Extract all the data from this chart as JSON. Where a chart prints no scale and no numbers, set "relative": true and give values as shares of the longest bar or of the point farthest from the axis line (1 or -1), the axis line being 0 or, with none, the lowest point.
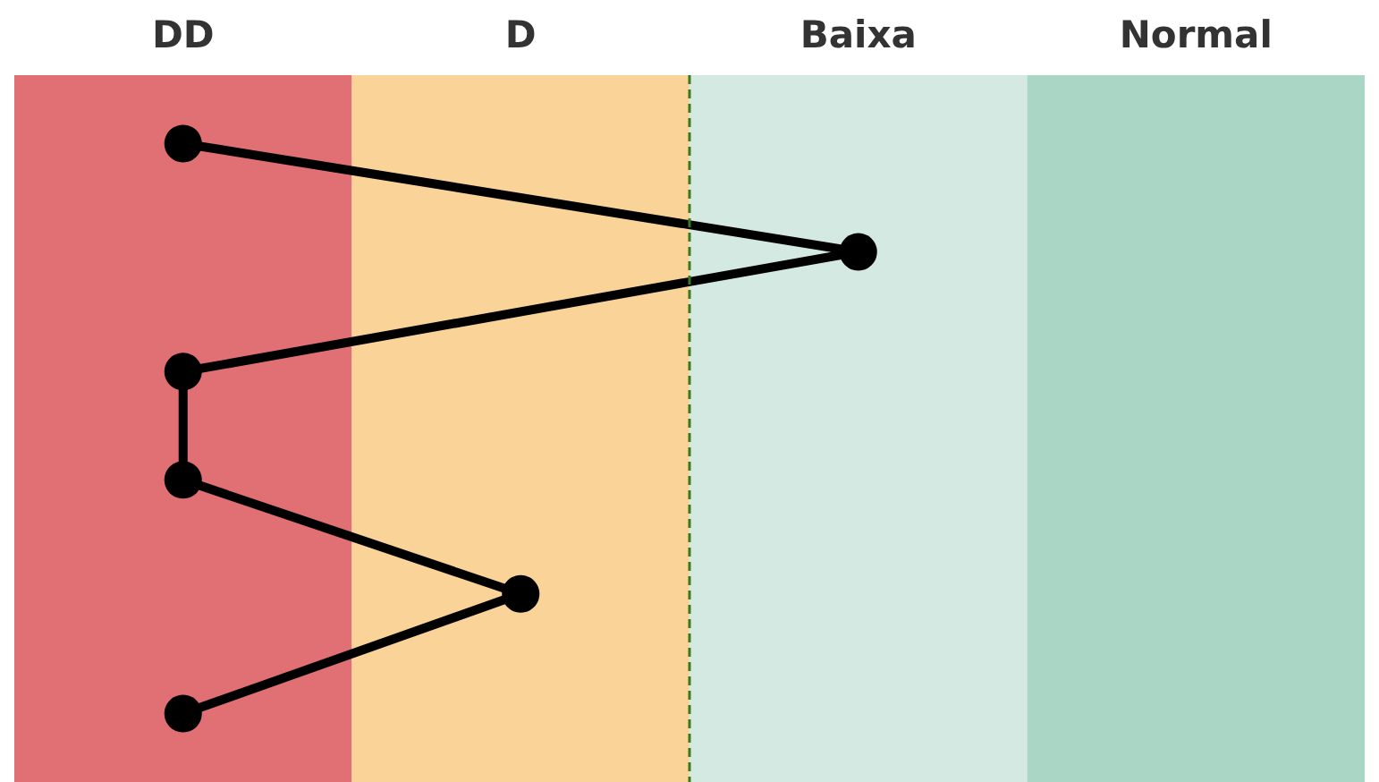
{
  "chart_data": {
    "type": "line",
    "relative": true,
    "categories": [
      "DD",
      "D",
      "Baixa",
      "Normal"
    ],
    "series": [
      {
        "color": "#000000",
        "x": [
          "DD",
          "Baixa",
          "DD",
          "DD",
          "D",
          "DD"
        ],
        "values": [
          1,
          0.81,
          0.6,
          0.41,
          0.21,
          0
        ]
      }
    ],
    "bands": [
      {
        "axis": "x",
        "from": "DD",
        "to": "DD",
        "color": "#e07073"
      },
      {
        "axis": "x",
        "from": "D",
        "to": "D",
        "color": "#f9d398"
      },
      {
        "axis": "x",
        "from": "Baixa",
        "to": "Baixa",
        "color": "#d5e9e3"
      },
      {
        "axis": "x",
        "from": "Normal",
        "to": "Normal",
        "color": "#aad6c5"
      }
    ],
    "ref_lines": [
      {
        "axis": "x",
        "value": "Baixa",
        "color": "#3a7a1a",
        "line_style": "dashed"
      }
    ],
    "marker": "circle",
    "line_style": "solid"
  }
}
